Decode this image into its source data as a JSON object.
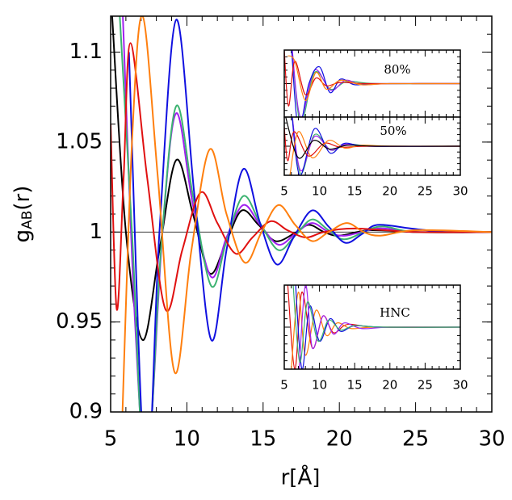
{
  "chart_data": [
    {
      "type": "line",
      "xlabel": "r[Å]",
      "ylabel": {
        "base": "g",
        "sub": "AB",
        "rest": "(r)"
      },
      "xlim": [
        5,
        30
      ],
      "xticks": [
        5,
        10,
        15,
        20,
        25,
        30
      ],
      "ylim": [
        0.9,
        1.12
      ],
      "yticks": [
        0.9,
        0.95,
        1,
        1.05,
        1.1
      ],
      "hline": 1,
      "series": [
        {
          "color": "#000000",
          "x": [
            5.1,
            6,
            7.1,
            8.2,
            9.3,
            10.4,
            11.5,
            12.6,
            13.6,
            14.7,
            15.8,
            17,
            18,
            19,
            20,
            22,
            25,
            30
          ],
          "values": [
            1.12,
            1.0,
            0.94,
            0.99,
            1.04,
            1.01,
            0.977,
            0.995,
            1.012,
            1.004,
            0.995,
            0.999,
            1.004,
            1.0,
            0.998,
            1.001,
            1,
            1
          ]
        },
        {
          "color": "#a020f0",
          "x": [
            5.8,
            6.6,
            7.4,
            8.4,
            9.3,
            10.4,
            11.6,
            12.6,
            13.7,
            14.8,
            16,
            17.1,
            18.2,
            19.3,
            20.4,
            22.6,
            25,
            30
          ],
          "values": [
            1.12,
            0.95,
            0.87,
            1.0,
            1.066,
            1.015,
            0.975,
            0.997,
            1.015,
            1.004,
            0.993,
            0.999,
            1.005,
            1.0,
            0.998,
            1.002,
            1,
            1
          ]
        },
        {
          "color": "#3cb371",
          "x": [
            5.6,
            6.4,
            7.3,
            8.3,
            9.3,
            10.4,
            11.6,
            12.6,
            13.7,
            14.8,
            16,
            17.1,
            18.2,
            19.3,
            20.4,
            22.6,
            25,
            30
          ],
          "values": [
            1.12,
            1.0,
            0.86,
            0.99,
            1.07,
            1.02,
            0.97,
            0.995,
            1.02,
            1.005,
            0.99,
            0.998,
            1.007,
            1.001,
            0.996,
            1.003,
            1,
            1
          ]
        },
        {
          "color": "#1010e0",
          "x": [
            6.2,
            7.3,
            8.2,
            9.3,
            10.5,
            11.6,
            12.6,
            13.7,
            14.8,
            15.9,
            17,
            18.2,
            19.3,
            20.4,
            21.5,
            22.5,
            24.7,
            27,
            30
          ],
          "values": [
            1.1,
            0.86,
            1.0,
            1.118,
            1.02,
            0.94,
            0.99,
            1.035,
            1.005,
            0.982,
            0.997,
            1.012,
            1.003,
            0.994,
            0.999,
            1.004,
            1.002,
            1.0,
            1
          ]
        },
        {
          "color": "#e01010",
          "x": [
            5,
            5.4,
            5.85,
            6.3,
            7.4,
            8.6,
            9.7,
            10.9,
            12,
            13.2,
            14.3,
            15.5,
            16.6,
            17.8,
            19,
            21,
            25,
            30
          ],
          "values": [
            1.06,
            0.957,
            1.03,
            1.105,
            1.03,
            0.957,
            0.99,
            1.022,
            1.005,
            0.988,
            0.997,
            1.006,
            1.001,
            0.997,
            1.0,
            1.002,
            1,
            1
          ]
        },
        {
          "color": "#ff7f0e",
          "x": [
            5.7,
            6.4,
            7.1,
            8.1,
            9.2,
            10.3,
            11.5,
            12.6,
            13.8,
            14.9,
            16,
            17.1,
            18.2,
            19.3,
            20.5,
            21.6,
            22.7,
            25,
            30
          ],
          "values": [
            0.88,
            1.05,
            1.12,
            1.03,
            0.922,
            0.99,
            1.046,
            1.01,
            0.983,
            1.0,
            1.015,
            1.004,
            0.995,
            1.0,
            1.005,
            1.0,
            0.998,
            1.001,
            1
          ]
        }
      ]
    },
    {
      "type": "line",
      "title": "80%",
      "xlim": [
        5,
        30
      ],
      "xticks": [
        5,
        10,
        15,
        20,
        25,
        30
      ],
      "ylim": [
        0.7,
        1.3
      ],
      "series": [
        {
          "color": "#3cb371",
          "x": [
            6,
            7.3,
            9.3,
            11.6,
            14,
            18,
            30
          ],
          "values": [
            1.4,
            0.65,
            1.1,
            0.95,
            1.02,
            1,
            1
          ]
        },
        {
          "color": "#a020f0",
          "x": [
            6,
            7.3,
            9.3,
            11.6,
            13.7,
            16,
            20,
            30
          ],
          "values": [
            1.4,
            0.7,
            1.12,
            0.94,
            1.03,
            0.99,
            1,
            1
          ]
        },
        {
          "color": "#1010e0",
          "x": [
            6,
            7,
            8.5,
            10,
            11.5,
            13,
            15,
            18,
            30
          ],
          "values": [
            1.35,
            0.6,
            1.0,
            1.15,
            0.92,
            1.04,
            0.99,
            1.0,
            1
          ]
        },
        {
          "color": "#e01010",
          "x": [
            5,
            5.6,
            6.5,
            8,
            9.5,
            11,
            13,
            17,
            30
          ],
          "values": [
            1.3,
            0.8,
            1.2,
            0.9,
            1.05,
            0.98,
            1.01,
            1,
            1
          ]
        },
        {
          "color": "#ff7f0e",
          "x": [
            5.5,
            6.5,
            8,
            9.5,
            11,
            13,
            16,
            20,
            30
          ],
          "values": [
            1.25,
            1.2,
            0.85,
            1.1,
            0.95,
            1.03,
            0.99,
            1.0,
            1
          ]
        }
      ]
    },
    {
      "type": "line",
      "title": "50%",
      "xlim": [
        5,
        30
      ],
      "xticks": [
        5,
        10,
        15,
        20,
        25,
        30
      ],
      "ylim": [
        0.7,
        1.3
      ],
      "series": [
        {
          "color": "#3cb371",
          "x": [
            6,
            7.3,
            9.3,
            11.6,
            14,
            18,
            30
          ],
          "values": [
            1.4,
            0.72,
            1.12,
            0.96,
            1.02,
            1,
            1
          ]
        },
        {
          "color": "#a020f0",
          "x": [
            6,
            7.3,
            9.3,
            11.6,
            13.7,
            17,
            30
          ],
          "values": [
            1.4,
            0.75,
            1.1,
            0.96,
            1.02,
            1,
            1
          ]
        },
        {
          "color": "#1010e0",
          "x": [
            6,
            7.2,
            9.3,
            11.5,
            13.6,
            17,
            30
          ],
          "values": [
            1.4,
            0.7,
            1.18,
            0.93,
            1.03,
            1,
            1
          ]
        },
        {
          "color": "#e01010",
          "x": [
            5,
            5.5,
            6.4,
            8.4,
            10.7,
            13,
            17,
            30
          ],
          "values": [
            1.2,
            0.85,
            1.15,
            0.9,
            1.03,
            0.99,
            1,
            1
          ]
        },
        {
          "color": "#ff7f0e",
          "x": [
            5.8,
            7,
            9,
            11.3,
            13.6,
            16,
            20,
            30
          ],
          "values": [
            0.7,
            1.15,
            0.88,
            1.06,
            0.98,
            1.01,
            1,
            1
          ]
        },
        {
          "color": "#000000",
          "x": [
            5.2,
            7,
            9.2,
            11.4,
            14,
            18,
            30
          ],
          "values": [
            1.3,
            0.88,
            1.06,
            0.97,
            1.01,
            1,
            1
          ]
        }
      ]
    },
    {
      "type": "line",
      "title": "HNC",
      "xlim": [
        5,
        30
      ],
      "xticks": [
        5,
        10,
        15,
        20,
        25,
        30
      ],
      "ylim": [
        0.7,
        1.3
      ],
      "series": [
        {
          "color": "#e01010",
          "x": [
            5.5,
            6.5,
            7.5,
            9,
            10.5,
            12,
            14,
            18,
            30
          ],
          "values": [
            1.3,
            0.7,
            1.25,
            0.85,
            1.08,
            0.96,
            1.02,
            1,
            1
          ]
        },
        {
          "color": "#ff7f0e",
          "x": [
            6,
            7,
            8,
            9.5,
            11,
            12.5,
            14.5,
            18,
            30
          ],
          "values": [
            0.7,
            1.25,
            0.8,
            1.12,
            0.94,
            1.03,
            0.99,
            1,
            1
          ]
        },
        {
          "color": "#1010e0",
          "x": [
            6.5,
            7.5,
            8.6,
            10,
            11.5,
            13,
            15,
            19,
            30
          ],
          "values": [
            1.4,
            0.7,
            1.15,
            0.9,
            1.06,
            0.97,
            1.01,
            1,
            1
          ]
        },
        {
          "color": "#a020f0",
          "x": [
            7,
            8,
            9,
            10.5,
            12,
            13.5,
            16,
            20,
            30
          ],
          "values": [
            0.6,
            1.3,
            0.85,
            1.08,
            0.95,
            1.03,
            0.99,
            1,
            1
          ]
        },
        {
          "color": "#3cb371",
          "x": [
            6.2,
            7.2,
            8.3,
            9.8,
            11.3,
            13,
            15,
            19,
            30
          ],
          "values": [
            1.35,
            0.75,
            1.18,
            0.9,
            1.05,
            0.98,
            1.01,
            1,
            1
          ]
        }
      ]
    }
  ]
}
